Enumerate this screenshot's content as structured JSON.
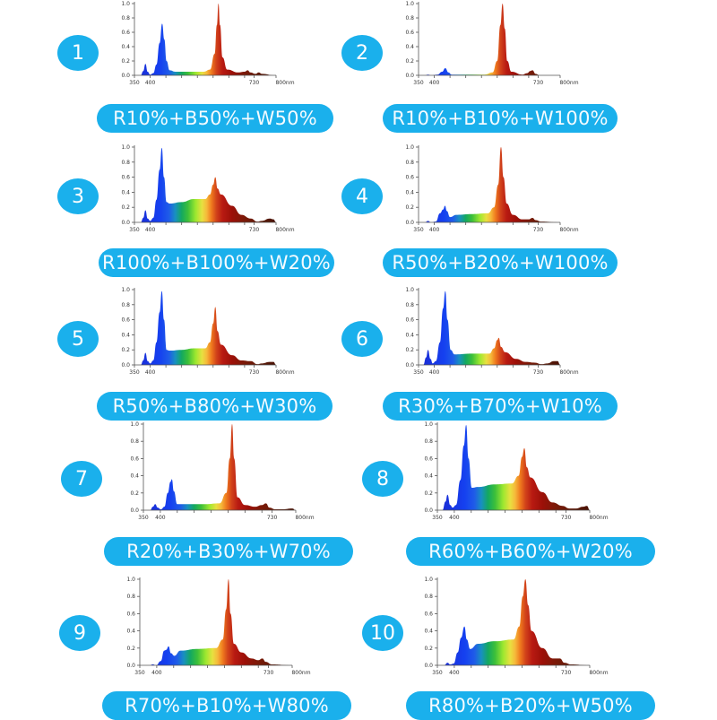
{
  "chart_data": [
    {
      "id": 1,
      "type": "area",
      "label": "R10%+B50%+W50%",
      "xlabel": "nm",
      "ylabel": "",
      "xlim": [
        350,
        800
      ],
      "ylim": [
        0,
        1.0
      ],
      "yticks": [
        "0.0",
        "0.2",
        "0.4",
        "0.6",
        "0.8",
        "1.0"
      ],
      "xtick_labels": [
        "350",
        "400",
        "730",
        "800nm"
      ],
      "points": [
        [
          370,
          0
        ],
        [
          378,
          0.06
        ],
        [
          385,
          0.16
        ],
        [
          392,
          0.05
        ],
        [
          400,
          0.01
        ],
        [
          410,
          0.03
        ],
        [
          420,
          0.15
        ],
        [
          430,
          0.45
        ],
        [
          438,
          0.72
        ],
        [
          445,
          0.5
        ],
        [
          452,
          0.2
        ],
        [
          462,
          0.07
        ],
        [
          480,
          0.05
        ],
        [
          520,
          0.05
        ],
        [
          570,
          0.05
        ],
        [
          590,
          0.08
        ],
        [
          605,
          0.3
        ],
        [
          612,
          0.7
        ],
        [
          617,
          1.0
        ],
        [
          622,
          0.7
        ],
        [
          630,
          0.25
        ],
        [
          645,
          0.08
        ],
        [
          680,
          0.04
        ],
        [
          700,
          0.05
        ],
        [
          710,
          0.07
        ],
        [
          718,
          0.04
        ],
        [
          735,
          0.02
        ],
        [
          745,
          0.04
        ],
        [
          755,
          0.02
        ],
        [
          795,
          0
        ]
      ]
    },
    {
      "id": 2,
      "type": "area",
      "label": "R10%+B10%+W100%",
      "xlabel": "nm",
      "ylabel": "",
      "xlim": [
        350,
        800
      ],
      "ylim": [
        0,
        1.0
      ],
      "yticks": [
        "0.0",
        "0.2",
        "0.4",
        "0.6",
        "0.8",
        "1.0"
      ],
      "xtick_labels": [
        "350",
        "400",
        "730",
        "800nm"
      ],
      "points": [
        [
          370,
          0
        ],
        [
          380,
          0.01
        ],
        [
          390,
          0
        ],
        [
          410,
          0.01
        ],
        [
          425,
          0.05
        ],
        [
          435,
          0.1
        ],
        [
          445,
          0.04
        ],
        [
          455,
          0.01
        ],
        [
          480,
          0.01
        ],
        [
          560,
          0.01
        ],
        [
          585,
          0.04
        ],
        [
          600,
          0.2
        ],
        [
          610,
          0.7
        ],
        [
          617,
          1.0
        ],
        [
          624,
          0.65
        ],
        [
          632,
          0.2
        ],
        [
          645,
          0.05
        ],
        [
          680,
          0.01
        ],
        [
          695,
          0.03
        ],
        [
          705,
          0.06
        ],
        [
          712,
          0.07
        ],
        [
          722,
          0.02
        ],
        [
          735,
          0
        ],
        [
          795,
          0
        ]
      ]
    },
    {
      "id": 3,
      "type": "area",
      "label": "R100%+B100%+W20%",
      "xlabel": "nm",
      "ylabel": "",
      "xlim": [
        350,
        800
      ],
      "ylim": [
        0,
        1.0
      ],
      "yticks": [
        "0.0",
        "0.2",
        "0.4",
        "0.6",
        "0.8",
        "1.0"
      ],
      "xtick_labels": [
        "350",
        "400",
        "730",
        "800nm"
      ],
      "points": [
        [
          370,
          0
        ],
        [
          378,
          0.06
        ],
        [
          385,
          0.16
        ],
        [
          392,
          0.05
        ],
        [
          400,
          0.02
        ],
        [
          410,
          0.06
        ],
        [
          420,
          0.3
        ],
        [
          430,
          0.7
        ],
        [
          437,
          0.99
        ],
        [
          444,
          0.6
        ],
        [
          452,
          0.27
        ],
        [
          462,
          0.25
        ],
        [
          500,
          0.27
        ],
        [
          540,
          0.31
        ],
        [
          575,
          0.31
        ],
        [
          590,
          0.37
        ],
        [
          600,
          0.5
        ],
        [
          607,
          0.6
        ],
        [
          614,
          0.45
        ],
        [
          625,
          0.37
        ],
        [
          660,
          0.22
        ],
        [
          690,
          0.1
        ],
        [
          720,
          0.05
        ],
        [
          740,
          0.01
        ],
        [
          755,
          0.02
        ],
        [
          780,
          0.05
        ],
        [
          792,
          0.04
        ],
        [
          800,
          0
        ]
      ]
    },
    {
      "id": 4,
      "type": "area",
      "label": "R50%+B20%+W100%",
      "xlabel": "nm",
      "ylabel": "",
      "xlim": [
        350,
        800
      ],
      "ylim": [
        0,
        1.0
      ],
      "yticks": [
        "0.0",
        "0.2",
        "0.4",
        "0.6",
        "0.8",
        "1.0"
      ],
      "xtick_labels": [
        "350",
        "400",
        "730",
        "800nm"
      ],
      "points": [
        [
          370,
          0
        ],
        [
          380,
          0.02
        ],
        [
          390,
          0
        ],
        [
          405,
          0.01
        ],
        [
          418,
          0.12
        ],
        [
          428,
          0.17
        ],
        [
          434,
          0.22
        ],
        [
          440,
          0.15
        ],
        [
          450,
          0.07
        ],
        [
          470,
          0.1
        ],
        [
          520,
          0.11
        ],
        [
          570,
          0.12
        ],
        [
          590,
          0.2
        ],
        [
          603,
          0.5
        ],
        [
          612,
          1.0
        ],
        [
          620,
          0.6
        ],
        [
          630,
          0.25
        ],
        [
          650,
          0.1
        ],
        [
          680,
          0.04
        ],
        [
          700,
          0.04
        ],
        [
          712,
          0.06
        ],
        [
          722,
          0.03
        ],
        [
          740,
          0.01
        ],
        [
          795,
          0
        ]
      ]
    },
    {
      "id": 5,
      "type": "area",
      "label": "R50%+B80%+W30%",
      "xlabel": "nm",
      "ylabel": "",
      "xlim": [
        350,
        800
      ],
      "ylim": [
        0,
        1.0
      ],
      "yticks": [
        "0.0",
        "0.2",
        "0.4",
        "0.6",
        "0.8",
        "1.0"
      ],
      "xtick_labels": [
        "350",
        "400",
        "730",
        "800nm"
      ],
      "points": [
        [
          370,
          0
        ],
        [
          378,
          0.06
        ],
        [
          385,
          0.16
        ],
        [
          392,
          0.05
        ],
        [
          400,
          0.02
        ],
        [
          410,
          0.06
        ],
        [
          420,
          0.3
        ],
        [
          430,
          0.7
        ],
        [
          437,
          0.98
        ],
        [
          444,
          0.6
        ],
        [
          452,
          0.2
        ],
        [
          462,
          0.19
        ],
        [
          500,
          0.2
        ],
        [
          540,
          0.22
        ],
        [
          575,
          0.22
        ],
        [
          590,
          0.3
        ],
        [
          600,
          0.55
        ],
        [
          607,
          0.77
        ],
        [
          614,
          0.45
        ],
        [
          625,
          0.27
        ],
        [
          660,
          0.13
        ],
        [
          690,
          0.06
        ],
        [
          720,
          0.05
        ],
        [
          740,
          0.01
        ],
        [
          755,
          0.02
        ],
        [
          780,
          0.04
        ],
        [
          792,
          0.04
        ],
        [
          800,
          0
        ]
      ]
    },
    {
      "id": 6,
      "type": "area",
      "label": "R30%+B70%+W10%",
      "xlabel": "nm",
      "ylabel": "",
      "xlim": [
        350,
        800
      ],
      "ylim": [
        0,
        1.0
      ],
      "yticks": [
        "0.0",
        "0.2",
        "0.4",
        "0.6",
        "0.8",
        "1.0"
      ],
      "xtick_labels": [
        "350",
        "400",
        "730",
        "800nm"
      ],
      "points": [
        [
          365,
          0
        ],
        [
          374,
          0.1
        ],
        [
          380,
          0.2
        ],
        [
          388,
          0.08
        ],
        [
          395,
          0.02
        ],
        [
          405,
          0.05
        ],
        [
          418,
          0.3
        ],
        [
          428,
          0.75
        ],
        [
          435,
          0.98
        ],
        [
          442,
          0.6
        ],
        [
          452,
          0.2
        ],
        [
          465,
          0.14
        ],
        [
          520,
          0.15
        ],
        [
          575,
          0.15
        ],
        [
          590,
          0.22
        ],
        [
          600,
          0.33
        ],
        [
          605,
          0.36
        ],
        [
          612,
          0.24
        ],
        [
          625,
          0.17
        ],
        [
          660,
          0.08
        ],
        [
          690,
          0.04
        ],
        [
          720,
          0.03
        ],
        [
          740,
          0.01
        ],
        [
          760,
          0.02
        ],
        [
          780,
          0.05
        ],
        [
          792,
          0.05
        ],
        [
          800,
          0
        ]
      ]
    },
    {
      "id": 7,
      "type": "area",
      "label": "R20%+B30%+W70%",
      "xlabel": "nm",
      "ylabel": "",
      "xlim": [
        350,
        800
      ],
      "ylim": [
        0,
        1.0
      ],
      "yticks": [
        "0.0",
        "0.2",
        "0.4",
        "0.6",
        "0.8",
        "1.0"
      ],
      "xtick_labels": [
        "350",
        "400",
        "730",
        "800nm"
      ],
      "points": [
        [
          370,
          0
        ],
        [
          378,
          0.04
        ],
        [
          385,
          0.07
        ],
        [
          392,
          0.03
        ],
        [
          402,
          0.01
        ],
        [
          412,
          0.04
        ],
        [
          422,
          0.2
        ],
        [
          430,
          0.33
        ],
        [
          434,
          0.36
        ],
        [
          440,
          0.22
        ],
        [
          450,
          0.07
        ],
        [
          470,
          0.07
        ],
        [
          530,
          0.07
        ],
        [
          575,
          0.08
        ],
        [
          595,
          0.2
        ],
        [
          605,
          0.6
        ],
        [
          612,
          1.0
        ],
        [
          618,
          0.6
        ],
        [
          628,
          0.15
        ],
        [
          650,
          0.06
        ],
        [
          680,
          0.04
        ],
        [
          700,
          0.06
        ],
        [
          712,
          0.08
        ],
        [
          722,
          0.03
        ],
        [
          740,
          0.01
        ],
        [
          760,
          0.01
        ],
        [
          790,
          0.02
        ],
        [
          800,
          0
        ]
      ]
    },
    {
      "id": 8,
      "type": "area",
      "label": "R60%+B60%+W20%",
      "xlabel": "nm",
      "ylabel": "",
      "xlim": [
        350,
        800
      ],
      "ylim": [
        0,
        1.0
      ],
      "yticks": [
        "0.0",
        "0.2",
        "0.4",
        "0.6",
        "0.8",
        "1.0"
      ],
      "xtick_labels": [
        "350",
        "400",
        "730",
        "800nm"
      ],
      "points": [
        [
          365,
          0
        ],
        [
          374,
          0.1
        ],
        [
          380,
          0.18
        ],
        [
          388,
          0.06
        ],
        [
          395,
          0.03
        ],
        [
          405,
          0.06
        ],
        [
          418,
          0.35
        ],
        [
          428,
          0.75
        ],
        [
          435,
          0.99
        ],
        [
          442,
          0.6
        ],
        [
          452,
          0.26
        ],
        [
          470,
          0.27
        ],
        [
          520,
          0.3
        ],
        [
          570,
          0.31
        ],
        [
          590,
          0.4
        ],
        [
          600,
          0.62
        ],
        [
          607,
          0.72
        ],
        [
          614,
          0.5
        ],
        [
          625,
          0.38
        ],
        [
          660,
          0.21
        ],
        [
          690,
          0.09
        ],
        [
          720,
          0.05
        ],
        [
          740,
          0.02
        ],
        [
          760,
          0.02
        ],
        [
          780,
          0.04
        ],
        [
          792,
          0.05
        ],
        [
          800,
          0
        ]
      ]
    },
    {
      "id": 9,
      "type": "area",
      "label": "R70%+B10%+W80%",
      "xlabel": "nm",
      "ylabel": "",
      "xlim": [
        350,
        800
      ],
      "ylim": [
        0,
        1.0
      ],
      "yticks": [
        "0.0",
        "0.2",
        "0.4",
        "0.6",
        "0.8",
        "1.0"
      ],
      "xtick_labels": [
        "350",
        "400",
        "730",
        "800nm"
      ],
      "points": [
        [
          380,
          0
        ],
        [
          388,
          0.01
        ],
        [
          398,
          0
        ],
        [
          412,
          0.05
        ],
        [
          422,
          0.17
        ],
        [
          428,
          0.18
        ],
        [
          435,
          0.22
        ],
        [
          442,
          0.14
        ],
        [
          452,
          0.11
        ],
        [
          470,
          0.17
        ],
        [
          520,
          0.19
        ],
        [
          575,
          0.2
        ],
        [
          595,
          0.3
        ],
        [
          605,
          0.65
        ],
        [
          612,
          1.0
        ],
        [
          618,
          0.6
        ],
        [
          628,
          0.25
        ],
        [
          650,
          0.15
        ],
        [
          680,
          0.08
        ],
        [
          700,
          0.06
        ],
        [
          712,
          0.08
        ],
        [
          722,
          0.04
        ],
        [
          740,
          0.01
        ],
        [
          795,
          0
        ]
      ]
    },
    {
      "id": 10,
      "type": "area",
      "label": "R80%+B20%+W50%",
      "xlabel": "nm",
      "ylabel": "",
      "xlim": [
        350,
        800
      ],
      "ylim": [
        0,
        1.0
      ],
      "yticks": [
        "0.0",
        "0.2",
        "0.4",
        "0.6",
        "0.8",
        "1.0"
      ],
      "xtick_labels": [
        "350",
        "400",
        "730",
        "800nm"
      ],
      "points": [
        [
          370,
          0
        ],
        [
          380,
          0.03
        ],
        [
          388,
          0.01
        ],
        [
          398,
          0.02
        ],
        [
          410,
          0.15
        ],
        [
          420,
          0.32
        ],
        [
          430,
          0.45
        ],
        [
          437,
          0.3
        ],
        [
          447,
          0.19
        ],
        [
          470,
          0.25
        ],
        [
          520,
          0.28
        ],
        [
          575,
          0.3
        ],
        [
          592,
          0.45
        ],
        [
          602,
          0.8
        ],
        [
          610,
          1.0
        ],
        [
          618,
          0.7
        ],
        [
          628,
          0.4
        ],
        [
          660,
          0.2
        ],
        [
          690,
          0.08
        ],
        [
          712,
          0.08
        ],
        [
          725,
          0.03
        ],
        [
          745,
          0.01
        ],
        [
          795,
          0
        ]
      ]
    }
  ],
  "panels": [
    {
      "number": "1",
      "formula": "R10%+B50%+W50%"
    },
    {
      "number": "2",
      "formula": "R10%+B10%+W100%"
    },
    {
      "number": "3",
      "formula": "R100%+B100%+W20%"
    },
    {
      "number": "4",
      "formula": "R50%+B20%+W100%"
    },
    {
      "number": "5",
      "formula": "R50%+B80%+W30%"
    },
    {
      "number": "6",
      "formula": "R30%+B70%+W10%"
    },
    {
      "number": "7",
      "formula": "R20%+B30%+W70%"
    },
    {
      "number": "8",
      "formula": "R60%+B60%+W20%"
    },
    {
      "number": "9",
      "formula": "R70%+B10%+W80%"
    },
    {
      "number": "10",
      "formula": "R80%+B20%+W50%"
    }
  ],
  "colors": {
    "accent": "#1ab0ec",
    "label_text": "#f4fbff",
    "axis": "#555555"
  }
}
